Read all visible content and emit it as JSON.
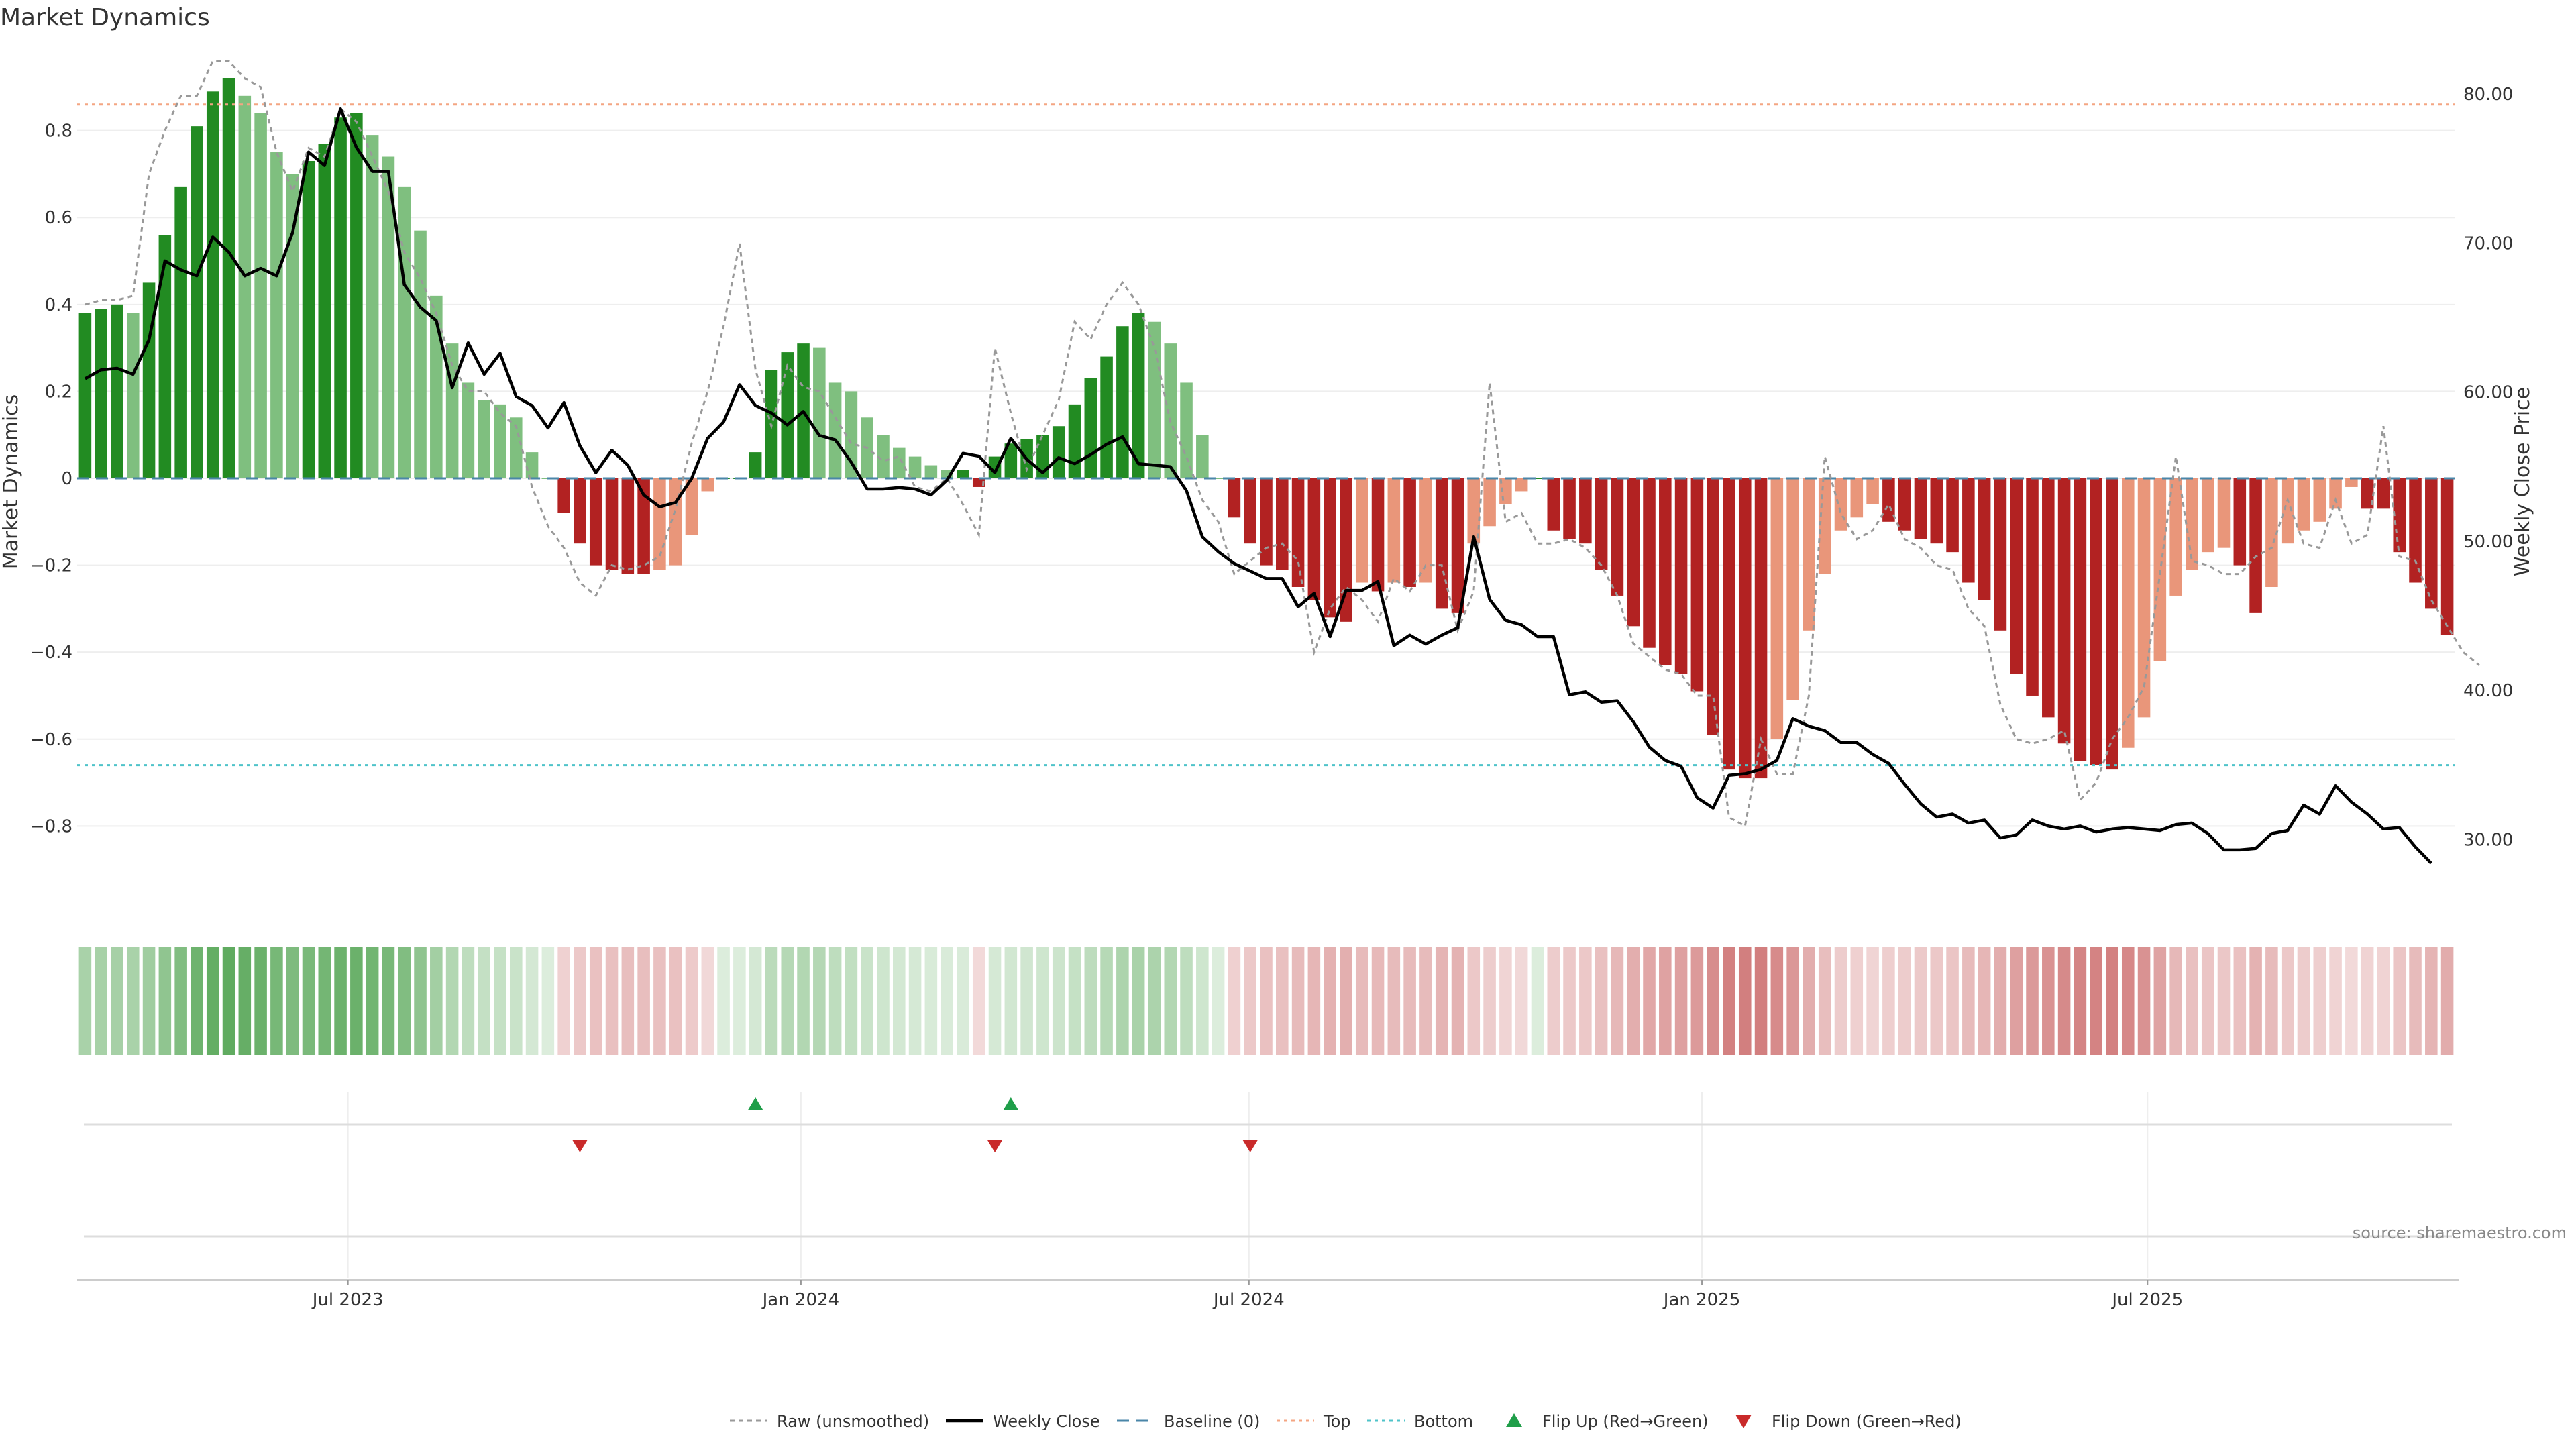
{
  "chart_data": {
    "type": "bar",
    "title": "Market Dynamics",
    "ylabel": "Market Dynamics",
    "y2label": "Weekly Close Price",
    "ylim": [
      -0.98,
      0.98
    ],
    "y2lim": [
      25.65,
      82.79
    ],
    "yticks": [
      -0.8,
      -0.6,
      -0.4,
      -0.2,
      0,
      0.2,
      0.4,
      0.6,
      0.8
    ],
    "ytick_labels": [
      "−0.8",
      "−0.6",
      "−0.4",
      "−0.2",
      "0",
      "0.2",
      "0.4",
      "0.6",
      "0.8"
    ],
    "y2ticks": [
      30,
      40,
      50,
      60,
      70,
      80
    ],
    "y2tick_labels": [
      "30.00",
      "40.00",
      "50.00",
      "60.00",
      "70.00",
      "80.00"
    ],
    "x_range": [
      "2023-03-13",
      "2025-11-03"
    ],
    "x_ticks": [
      {
        "date": "2023-07-01",
        "label": "Jul 2023"
      },
      {
        "date": "2024-01-01",
        "label": "Jan 2024"
      },
      {
        "date": "2024-07-01",
        "label": "Jul 2024"
      },
      {
        "date": "2025-01-01",
        "label": "Jan 2025"
      },
      {
        "date": "2025-07-01",
        "label": "Jul 2025"
      }
    ],
    "start_date": "2023-03-13",
    "week_interval_days": 7,
    "smoothed": [
      0.38,
      0.39,
      0.4,
      0.38,
      0.45,
      0.56,
      0.67,
      0.81,
      0.89,
      0.92,
      0.88,
      0.84,
      0.75,
      0.7,
      0.73,
      0.77,
      0.83,
      0.84,
      0.79,
      0.74,
      0.67,
      0.57,
      0.42,
      0.31,
      0.22,
      0.18,
      0.17,
      0.14,
      0.06,
      0,
      -0.08,
      -0.15,
      -0.2,
      -0.21,
      -0.22,
      -0.22,
      -0.21,
      -0.2,
      -0.13,
      -0.03,
      0,
      0,
      0.06,
      0.25,
      0.29,
      0.31,
      0.3,
      0.22,
      0.2,
      0.14,
      0.1,
      0.07,
      0.05,
      0.03,
      0.02,
      0.02,
      -0.02,
      0.05,
      0.08,
      0.09,
      0.1,
      0.12,
      0.17,
      0.23,
      0.28,
      0.35,
      0.38,
      0.36,
      0.31,
      0.22,
      0.1,
      0,
      -0.09,
      -0.15,
      -0.2,
      -0.21,
      -0.25,
      -0.28,
      -0.32,
      -0.33,
      -0.24,
      -0.26,
      -0.24,
      -0.25,
      -0.24,
      -0.3,
      -0.31,
      -0.15,
      -0.11,
      -0.06,
      -0.03,
      0,
      -0.12,
      -0.14,
      -0.15,
      -0.21,
      -0.27,
      -0.34,
      -0.39,
      -0.43,
      -0.45,
      -0.49,
      -0.59,
      -0.67,
      -0.69,
      -0.69,
      -0.6,
      -0.51,
      -0.35,
      -0.22,
      -0.12,
      -0.09,
      -0.06,
      -0.1,
      -0.12,
      -0.14,
      -0.15,
      -0.17,
      -0.24,
      -0.28,
      -0.35,
      -0.45,
      -0.5,
      -0.55,
      -0.61,
      -0.65,
      -0.66,
      -0.67,
      -0.62,
      -0.55,
      -0.42,
      -0.27,
      -0.21,
      -0.17,
      -0.16,
      -0.2,
      -0.31,
      -0.25,
      -0.15,
      -0.12,
      -0.1,
      -0.07,
      -0.02,
      -0.07,
      -0.07,
      -0.17,
      -0.24,
      -0.3,
      -0.36
    ],
    "raw": [
      0.4,
      0.41,
      0.41,
      0.42,
      0.7,
      0.8,
      0.88,
      0.88,
      0.96,
      0.96,
      0.92,
      0.9,
      0.75,
      0.66,
      0.76,
      0.74,
      0.85,
      0.82,
      0.74,
      0.66,
      0.52,
      0.46,
      0.38,
      0.26,
      0.2,
      0.2,
      0.15,
      0.12,
      -0.02,
      -0.11,
      -0.16,
      -0.24,
      -0.27,
      -0.2,
      -0.21,
      -0.2,
      -0.18,
      -0.07,
      0.08,
      0.2,
      0.35,
      0.54,
      0.25,
      0.12,
      0.26,
      0.21,
      0.2,
      0.14,
      0.08,
      0.07,
      0.04,
      0.05,
      -0.02,
      -0.03,
      0,
      -0.06,
      -0.13,
      0.3,
      0.15,
      0.02,
      0.1,
      0.18,
      0.36,
      0.32,
      0.4,
      0.45,
      0.4,
      0.3,
      0.13,
      0.05,
      -0.05,
      -0.1,
      -0.22,
      -0.19,
      -0.16,
      -0.15,
      -0.19,
      -0.4,
      -0.3,
      -0.25,
      -0.28,
      -0.33,
      -0.23,
      -0.26,
      -0.2,
      -0.2,
      -0.35,
      -0.26,
      0.22,
      -0.1,
      -0.08,
      -0.15,
      -0.15,
      -0.14,
      -0.16,
      -0.2,
      -0.27,
      -0.38,
      -0.41,
      -0.44,
      -0.45,
      -0.5,
      -0.5,
      -0.78,
      -0.8,
      -0.6,
      -0.68,
      -0.68,
      -0.5,
      0.05,
      -0.08,
      -0.14,
      -0.12,
      -0.06,
      -0.14,
      -0.16,
      -0.2,
      -0.21,
      -0.3,
      -0.34,
      -0.52,
      -0.6,
      -0.61,
      -0.6,
      -0.58,
      -0.74,
      -0.7,
      -0.6,
      -0.55,
      -0.48,
      -0.22,
      0.05,
      -0.19,
      -0.2,
      -0.22,
      -0.22,
      -0.18,
      -0.16,
      -0.05,
      -0.15,
      -0.16,
      -0.05,
      -0.15,
      -0.13,
      0.12,
      -0.18,
      -0.19,
      -0.28,
      -0.34,
      -0.4,
      -0.43
    ],
    "weekly_close": [
      60.9,
      61.5,
      61.6,
      61.2,
      63.5,
      68.8,
      68.2,
      67.8,
      70.4,
      69.4,
      67.8,
      68.3,
      67.8,
      70.7,
      76.1,
      75.2,
      79,
      76.4,
      74.8,
      74.8,
      67.2,
      65.7,
      64.8,
      60.3,
      63.3,
      61.2,
      62.6,
      59.7,
      59.1,
      57.6,
      59.3,
      56.4,
      54.6,
      56.1,
      55.1,
      53.1,
      52.3,
      52.6,
      54.2,
      56.9,
      58,
      60.5,
      59.1,
      58.6,
      57.8,
      58.7,
      57.1,
      56.8,
      55.3,
      53.5,
      53.5,
      53.6,
      53.5,
      53.1,
      54.1,
      55.9,
      55.7,
      54.6,
      56.9,
      55.5,
      54.6,
      55.6,
      55.2,
      55.8,
      56.5,
      57,
      55.2,
      55.1,
      55,
      53.4,
      50.3,
      49.3,
      48.5,
      48,
      47.5,
      47.5,
      45.6,
      46.5,
      43.6,
      46.7,
      46.7,
      47.3,
      43,
      43.7,
      43.1,
      43.7,
      44.2,
      50.3,
      46.1,
      44.7,
      44.4,
      43.6,
      43.6,
      39.7,
      39.9,
      39.2,
      39.3,
      37.9,
      36.2,
      35.3,
      34.9,
      32.8,
      32.1,
      34.3,
      34.4,
      34.7,
      35.3,
      38.1,
      37.6,
      37.3,
      36.5,
      36.5,
      35.7,
      35.1,
      33.7,
      32.4,
      31.5,
      31.7,
      31.1,
      31.3,
      30.1,
      30.3,
      31.3,
      30.9,
      30.7,
      30.9,
      30.5,
      30.7,
      30.8,
      30.7,
      30.6,
      31,
      31.1,
      30.4,
      29.3,
      29.3,
      29.4,
      30.4,
      30.6,
      32.3,
      31.7,
      33.6,
      32.5,
      31.7,
      30.7,
      30.8,
      29.5,
      28.4
    ],
    "baseline": 0,
    "top": 0.86,
    "bottom": -0.66,
    "flip_up_weeks": [
      42,
      58
    ],
    "flip_down_weeks": [
      31,
      57,
      73
    ],
    "legend": [
      "Raw (unsmoothed)",
      "Weekly Close",
      "Baseline (0)",
      "Top",
      "Bottom",
      "Flip Up (Red→Green)",
      "Flip Down (Green→Red)"
    ],
    "legend_position": "bottom-center",
    "grid": true
  },
  "source": "source: sharemaestro.com",
  "colors": {
    "strong_green": "#228b22",
    "light_green": "#7fbf7f",
    "strong_red": "#b22222",
    "light_red": "#e9967a",
    "raw_line": "#999999",
    "close_line": "#000000",
    "baseline": "#4a86a8",
    "top": "#f4a582",
    "bottom": "#4fc3c9",
    "flip_up": "#1f9e49",
    "flip_down": "#c92a2a"
  }
}
